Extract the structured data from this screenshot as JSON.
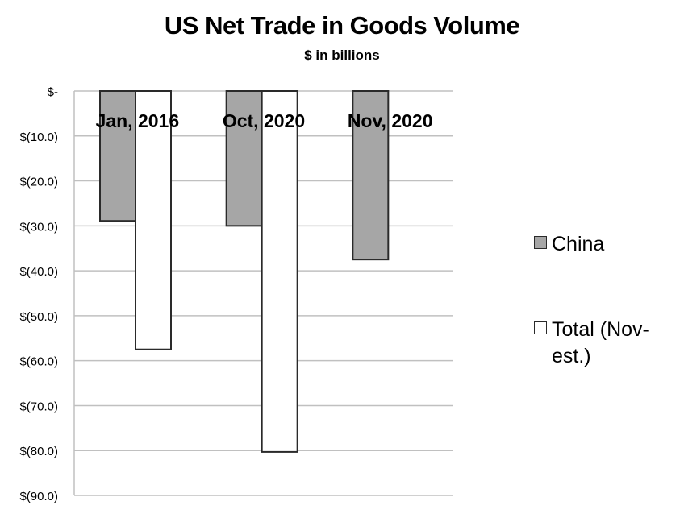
{
  "chart_data": {
    "type": "bar",
    "title": "US Net Trade in Goods Volume",
    "subtitle": "$ in billions",
    "categories": [
      "Jan, 2016",
      "Oct, 2020",
      "Nov, 2020"
    ],
    "series": [
      {
        "name": "China",
        "values": [
          -28.9,
          -30.0,
          -37.5
        ],
        "color": "#a6a6a6"
      },
      {
        "name": "Total (Nov-est.)",
        "values": [
          -57.5,
          -80.3,
          null
        ],
        "color": "#ffffff"
      }
    ],
    "ylim": [
      -90,
      0
    ],
    "yticks": [
      0,
      -10,
      -20,
      -30,
      -40,
      -50,
      -60,
      -70,
      -80,
      -90
    ],
    "ytick_labels": [
      "$-",
      "$(10.0)",
      "$(20.0)",
      "$(30.0)",
      "$(40.0)",
      "$(50.0)",
      "$(60.0)",
      "$(70.0)",
      "$(80.0)",
      "$(90.0)"
    ],
    "xlabel": "",
    "ylabel": "",
    "grid": true,
    "legend_position": "right",
    "bar_outline_color": "#2a2a2a",
    "grid_color": "#c0c0c0"
  }
}
